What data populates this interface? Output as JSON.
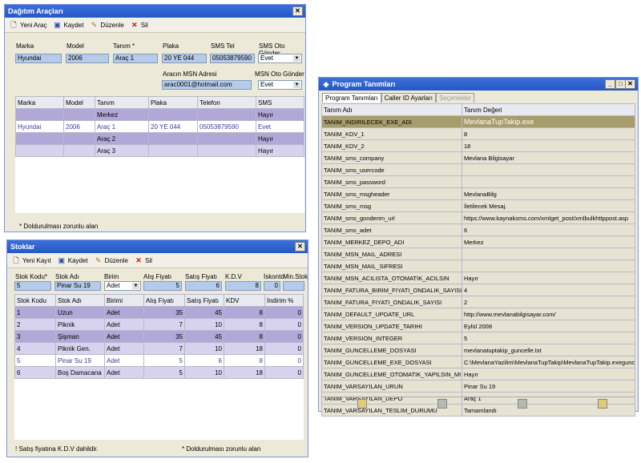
{
  "vehicles": {
    "title": "Dağıtım Araçları",
    "toolbar": {
      "new": "Yeni Araç",
      "save": "Kaydet",
      "edit": "Düzenle",
      "delete": "Sil"
    },
    "labels": {
      "marka": "Marka",
      "model": "Model",
      "tanim": "Tanım *",
      "plaka": "Plaka",
      "sms_tel": "SMS Tel",
      "sms_oto": "SMS Oto Gönder",
      "msn_adres": "Aracın MSN Adresi",
      "msn_oto": "MSN Oto Gönder"
    },
    "values": {
      "marka": "Hyundai",
      "model": "2006",
      "tanim": "Araç 1",
      "plaka": "20 YE 044",
      "sms_tel": "05053879590",
      "sms_oto": "Evet",
      "msn_adres": "arac0001@hotmail.com",
      "msn_oto": "Evet"
    },
    "columns": [
      "Marka",
      "Model",
      "Tanım",
      "Plaka",
      "Telefon",
      "SMS"
    ],
    "rows": [
      [
        "",
        "",
        "Merkez",
        "",
        "",
        "Hayır"
      ],
      [
        "Hyundai",
        "2006",
        "Araç 1",
        "20 YE 044",
        "05053879590",
        "Evet"
      ],
      [
        "",
        "",
        "Araç 2",
        "",
        "",
        "Hayır"
      ],
      [
        "",
        "",
        "Araç 3",
        "",
        "",
        "Hayır"
      ]
    ],
    "footer": "* Doldurulması zorunlu alan"
  },
  "stocks": {
    "title": "Stoklar",
    "toolbar": {
      "new": "Yeni Kayıt",
      "save": "Kaydet",
      "edit": "Düzenle",
      "delete": "Sil"
    },
    "labels": {
      "kod": "Stok Kodu*",
      "adi": "Stok Adı",
      "birim": "Birim",
      "alis": "Alış Fiyatı",
      "satis": "Satış Fiyatı",
      "kdv": "K.D.V",
      "iskonto": "İskonto",
      "min": "Min.Stok"
    },
    "values": {
      "kod": "5",
      "adi": "Pinar Su 19",
      "birim": "Adet",
      "alis": "5",
      "satis": "6",
      "kdv": "8",
      "iskonto": "0",
      "min": ""
    },
    "columns": [
      "Stok Kodu",
      "Stok Adı",
      "Birimi",
      "Alış Fiyatı",
      "Satış Fiyatı",
      "KDV",
      "İndirim %"
    ],
    "rows": [
      [
        "1",
        "Uzun",
        "Adet",
        "35",
        "45",
        "8",
        "0"
      ],
      [
        "2",
        "Piknik",
        "Adet",
        "7",
        "10",
        "8",
        "0"
      ],
      [
        "3",
        "Şişman",
        "Adet",
        "35",
        "45",
        "8",
        "0"
      ],
      [
        "4",
        "Piknik Gen.",
        "Adet",
        "7",
        "10",
        "18",
        "0"
      ],
      [
        "5",
        "Pinar Su 19",
        "Adet",
        "5",
        "6",
        "8",
        "0"
      ],
      [
        "6",
        "Boş Damacana",
        "Adet",
        "5",
        "10",
        "18",
        "0"
      ]
    ],
    "footer_left": "! Satış fiyatına K.D.V dahildir.",
    "footer_right": "* Doldurulması zorunlu alan"
  },
  "program": {
    "title": "Program Tanımları",
    "tabs": [
      "Program Tanımları",
      "Caller ID Ayarları",
      "Seçenekler"
    ],
    "columns": [
      "Tanım Adı",
      "Tanım Değeri"
    ],
    "rows": [
      [
        "TANIM_INDIRILECEK_EXE_ADI",
        "MevlanaTupTakip.exe"
      ],
      [
        "TANIM_KDV_1",
        "8"
      ],
      [
        "TANIM_KDV_2",
        "18"
      ],
      [
        "TANIM_sms_company",
        "Mevlana Bilgisayar"
      ],
      [
        "TANIM_sms_usercode",
        ""
      ],
      [
        "TANIM_sms_password",
        ""
      ],
      [
        "TANIM_sms_msgheader",
        "MevlanaBilg"
      ],
      [
        "TANIM_sms_msg",
        "İletilecek Mesaj."
      ],
      [
        "TANIM_sms_gonderim_url",
        "https://www.kaynaksms.com/xmlget_post/xmlbulkhttppost.asp"
      ],
      [
        "TANIM_sms_adet",
        "6"
      ],
      [
        "TANIM_MERKEZ_DEPO_ADI",
        "Merkez"
      ],
      [
        "TANIM_MSN_MAIL_ADRESI",
        ""
      ],
      [
        "TANIM_MSN_MAIL_SIFRESI",
        ""
      ],
      [
        "TANIM_MSN_ACILISTA_OTOMATIK_ACILSIN",
        "Hayır"
      ],
      [
        "TANIM_FATURA_BIRIM_FIYATI_ONDALIK_SAYISI",
        "4"
      ],
      [
        "TANIM_FATURA_FIYATI_ONDALIK_SAYISI",
        "2"
      ],
      [
        "TANIM_DEFAULT_UPDATE_URL",
        "http://www.mevlanabilgisayar.com/"
      ],
      [
        "TANIM_VERSION_UPDATE_TARIHI",
        "Eylül 2008"
      ],
      [
        "TANIM_VERSION_INTEGER",
        "5"
      ],
      [
        "TANIM_GUNCELLEME_DOSYASI",
        "mevlanatuptakip_guncelle.txt"
      ],
      [
        "TANIM_GUNCELLEME_EXE_DOSYASI",
        "C:\\MevlanaYazilim\\MevlanaTupTakip\\MevlanaTupTakip.exeguncelle"
      ],
      [
        "TANIM_GUNCELLEME_OTOMATIK_YAPILSIN_MI",
        "Hayır"
      ],
      [
        "TANIM_VARSAYILAN_URUN",
        "Pinar Su 19"
      ],
      [
        "TANIM_VARSAYILAN_DEPO",
        "Araç 1"
      ],
      [
        "TANIM_VARSAYILAN_TESLIM_DURUMU",
        "Tamamlandı"
      ]
    ]
  }
}
